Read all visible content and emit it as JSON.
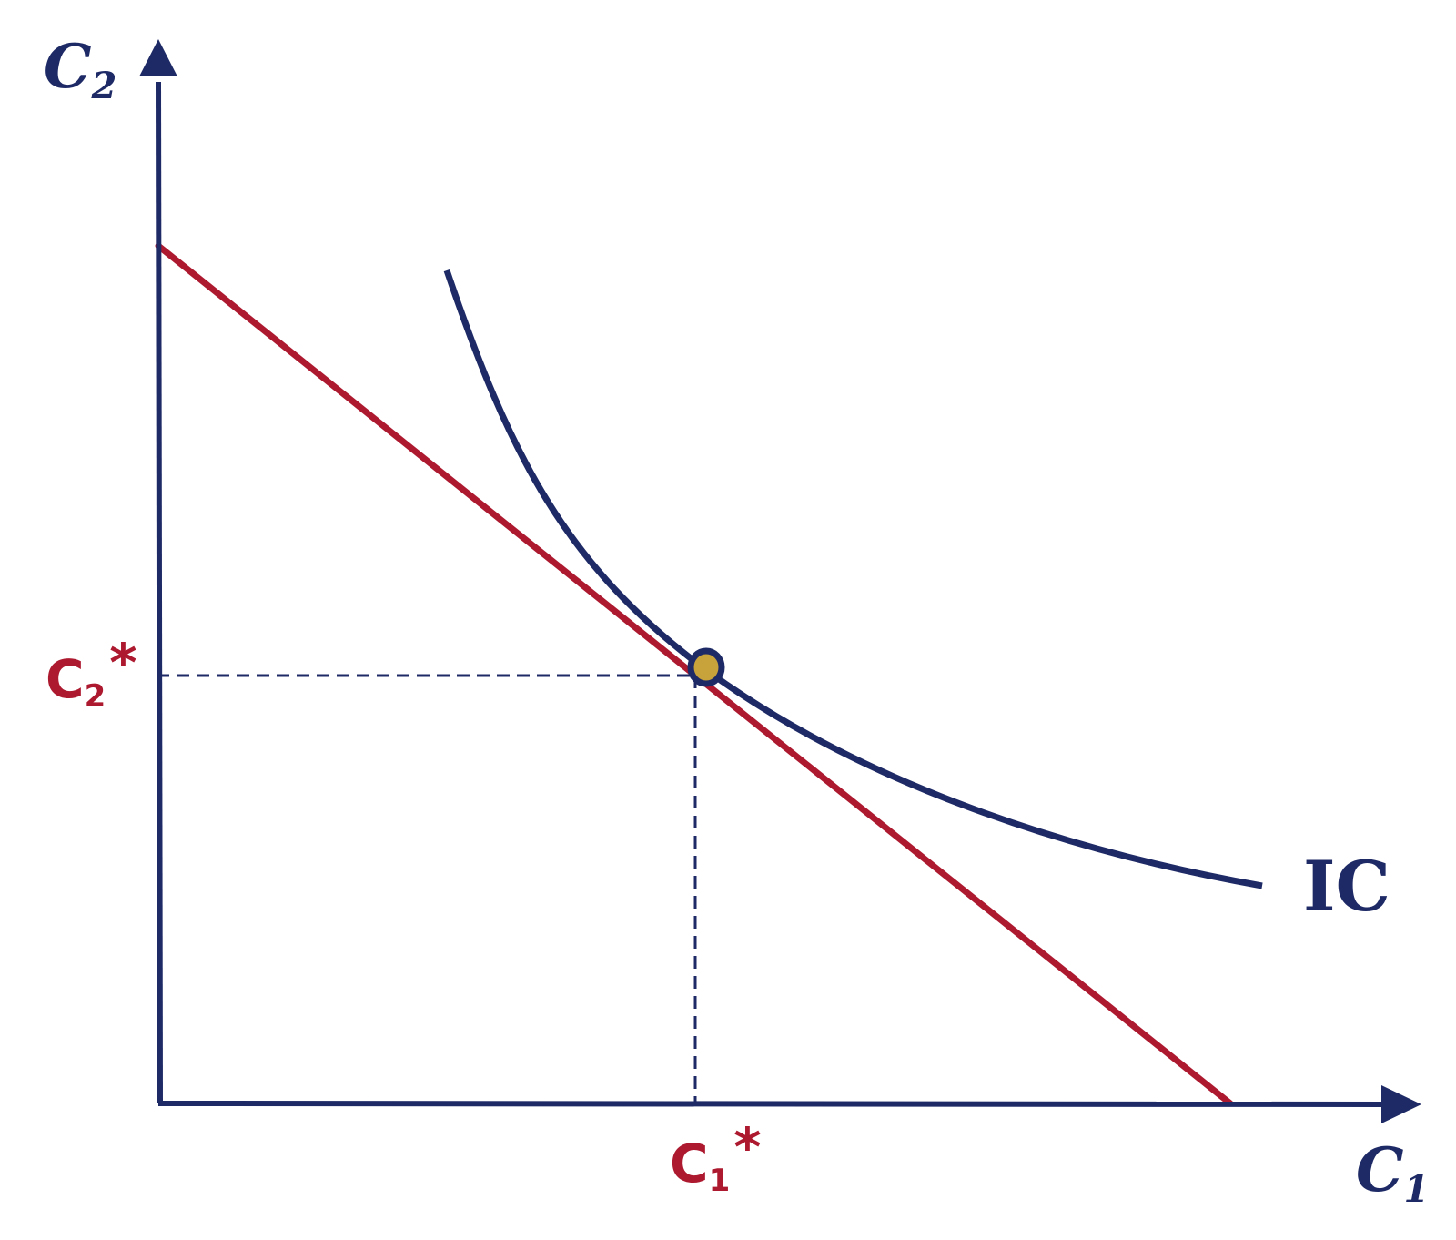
{
  "diagram": {
    "colors": {
      "navy": "#1e2a66",
      "crimson": "#ad1a30",
      "gold": "#c8a23a",
      "background": "#ffffff"
    },
    "y_axis": {
      "base": "C",
      "sub": "2"
    },
    "x_axis": {
      "base": "C",
      "sub": "1"
    },
    "c2_star": {
      "base": "C",
      "sub": "2",
      "sup": "*"
    },
    "c1_star": {
      "base": "C",
      "sub": "1",
      "sup": "*"
    },
    "curve_label": "IC"
  }
}
